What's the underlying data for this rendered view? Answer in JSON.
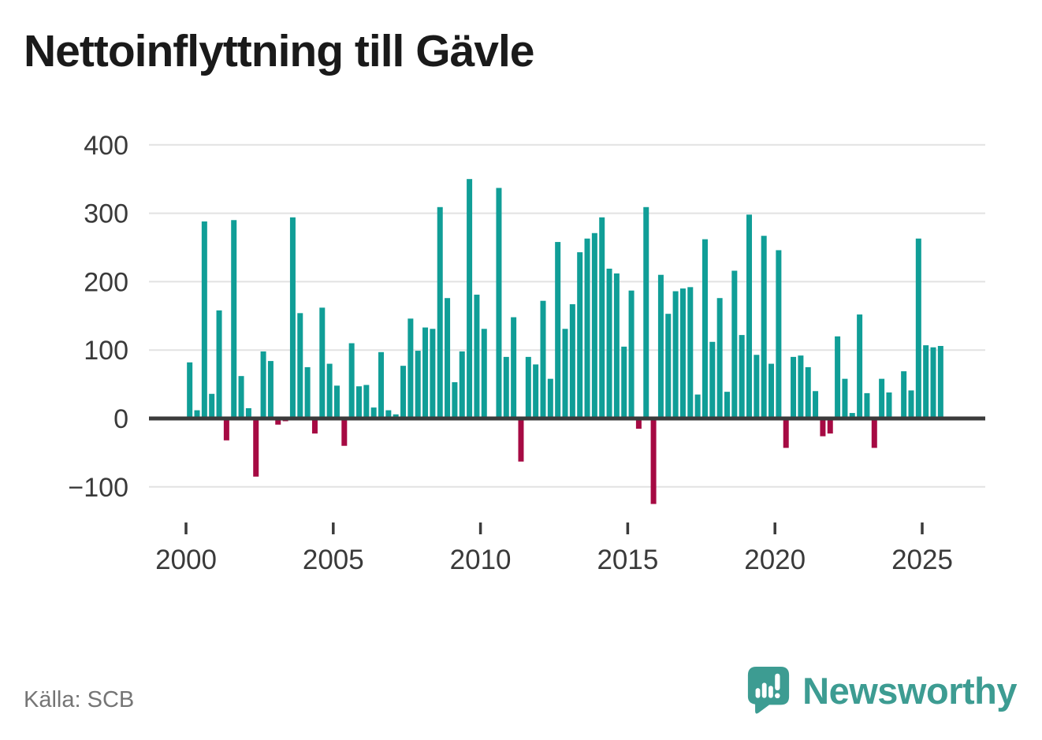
{
  "title": "Nettoinflyttning till Gävle",
  "source": "Källa: SCB",
  "branding": {
    "logo_text": "Newsworthy",
    "logo_icon": "speech-bubble-with-bar-chart-and-exclamation"
  },
  "colors": {
    "positive_bar": "#109e97",
    "negative_bar": "#a60a43",
    "grid": "#e2e2e2",
    "zero_axis": "#3b3b3b",
    "tick_text": "#3a3a3a",
    "muted_text": "#757575",
    "brand_teal": "#3d9c92",
    "title_text": "#1a1a1a"
  },
  "chart_data": {
    "type": "bar",
    "title": "Nettoinflyttning till Gävle",
    "xlabel": "",
    "ylabel": "",
    "frequency": "quarterly",
    "start_period": "2000Q1",
    "end_period": "2025Q3",
    "x_tick_years": [
      2000,
      2005,
      2010,
      2015,
      2020,
      2025
    ],
    "y_ticks": [
      400,
      300,
      200,
      100,
      0,
      -100
    ],
    "ylim": [
      -140,
      410
    ],
    "grid": "horizontal",
    "legend": "none",
    "series": [
      {
        "name": "Nettoinflyttning",
        "values": [
          82,
          12,
          288,
          36,
          158,
          -32,
          290,
          62,
          15,
          -85,
          98,
          84,
          -9,
          -4,
          294,
          154,
          75,
          -22,
          162,
          80,
          48,
          -40,
          110,
          47,
          49,
          16,
          97,
          12,
          6,
          77,
          146,
          99,
          133,
          131,
          309,
          176,
          53,
          98,
          350,
          181,
          131,
          0,
          337,
          90,
          148,
          -63,
          90,
          79,
          172,
          58,
          258,
          131,
          167,
          243,
          263,
          271,
          294,
          219,
          212,
          105,
          187,
          -15,
          309,
          -125,
          210,
          153,
          186,
          190,
          192,
          35,
          262,
          112,
          176,
          39,
          216,
          122,
          298,
          93,
          267,
          80,
          246,
          -43,
          90,
          92,
          75,
          40,
          -26,
          -22,
          120,
          58,
          8,
          152,
          37,
          -43,
          58,
          38,
          0,
          69,
          41,
          263,
          107,
          104,
          106
        ]
      }
    ]
  }
}
